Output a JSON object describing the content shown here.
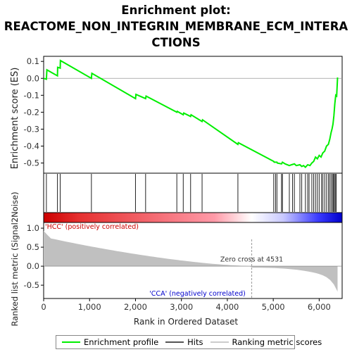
{
  "title_line1": "Enrichment plot:",
  "title_line2": "REACTOME_NON_INTEGRIN_MEMBRANE_ECM_INTERA",
  "title_line3": "CTIONS",
  "chart_data": {
    "type": "line",
    "x_max": 6500,
    "es": {
      "ylabel": "Enrichment score (ES)",
      "ylim": [
        -0.56,
        0.13
      ],
      "yticks": [
        -0.5,
        -0.4,
        -0.3,
        -0.2,
        -0.1,
        0.0,
        0.1
      ],
      "ytick_labels": [
        "-0.5",
        "-0.4",
        "-0.3",
        "-0.2",
        "-0.1",
        "0.0",
        "0.1"
      ],
      "series": [
        {
          "name": "Enrichment profile",
          "color": "#00ee00",
          "x": [
            0,
            60,
            70,
            300,
            305,
            360,
            365,
            1040,
            1050,
            2000,
            2010,
            2220,
            2230,
            2900,
            2910,
            3040,
            3050,
            3200,
            3210,
            3450,
            3460,
            4230,
            4240,
            5010,
            5020,
            5080,
            5090,
            5180,
            5200,
            5260,
            5350,
            5400,
            5460,
            5500,
            5580,
            5620,
            5660,
            5700,
            5750,
            5800,
            5840,
            5880,
            5920,
            5960,
            6000,
            6040,
            6080,
            6120,
            6160,
            6200,
            6230,
            6260,
            6280,
            6300,
            6320,
            6340,
            6360,
            6380,
            6400
          ],
          "y": [
            0.0,
            -0.005,
            0.05,
            0.015,
            0.065,
            0.06,
            0.105,
            0.0,
            0.03,
            -0.12,
            -0.095,
            -0.12,
            -0.105,
            -0.2,
            -0.195,
            -0.215,
            -0.205,
            -0.225,
            -0.215,
            -0.255,
            -0.245,
            -0.39,
            -0.38,
            -0.49,
            -0.495,
            -0.495,
            -0.5,
            -0.505,
            -0.495,
            -0.505,
            -0.515,
            -0.51,
            -0.505,
            -0.515,
            -0.51,
            -0.52,
            -0.515,
            -0.525,
            -0.51,
            -0.515,
            -0.5,
            -0.49,
            -0.465,
            -0.475,
            -0.455,
            -0.465,
            -0.44,
            -0.43,
            -0.4,
            -0.39,
            -0.36,
            -0.32,
            -0.3,
            -0.27,
            -0.22,
            -0.15,
            -0.1,
            -0.105,
            0.005
          ]
        }
      ]
    },
    "hits": [
      60,
      300,
      360,
      1040,
      2000,
      2220,
      2900,
      3040,
      3200,
      3450,
      4230,
      5010,
      5050,
      5080,
      5180,
      5200,
      5350,
      5420,
      5460,
      5580,
      5620,
      5700,
      5750,
      5780,
      5840,
      5880,
      5920,
      5960,
      6000,
      6050,
      6080,
      6120,
      6160,
      6200,
      6230,
      6260,
      6290,
      6310,
      6330,
      6350,
      6370
    ],
    "metric": {
      "ylabel": "Ranked list metric (Signal2Noise)",
      "ylim": [
        -0.85,
        1.15
      ],
      "yticks": [
        -0.5,
        0.0,
        0.5,
        1.0
      ],
      "ytick_labels": [
        "-0.5",
        "0.0",
        "0.5",
        "1.0"
      ],
      "zero_cross": 4531,
      "zero_cross_label": "Zero cross at 4531",
      "pos_label": "'HCC' (positively correlated)",
      "neg_label": "'CCA' (negatively correlated)",
      "pos_color": "#cc0000",
      "neg_color": "#0000cc",
      "fill_color": "#c0c0c0"
    },
    "xlabel": "Rank in Ordered Dataset",
    "xticks": [
      0,
      1000,
      2000,
      3000,
      4000,
      5000,
      6000
    ],
    "xtick_labels": [
      "0",
      "1,000",
      "2,000",
      "3,000",
      "4,000",
      "5,000",
      "6,000"
    ]
  },
  "legend": {
    "items": [
      {
        "label": "Enrichment profile",
        "color": "#00ee00"
      },
      {
        "label": "Hits",
        "color": "#555555"
      },
      {
        "label": "Ranking metric scores",
        "color": "#cccccc"
      }
    ]
  }
}
